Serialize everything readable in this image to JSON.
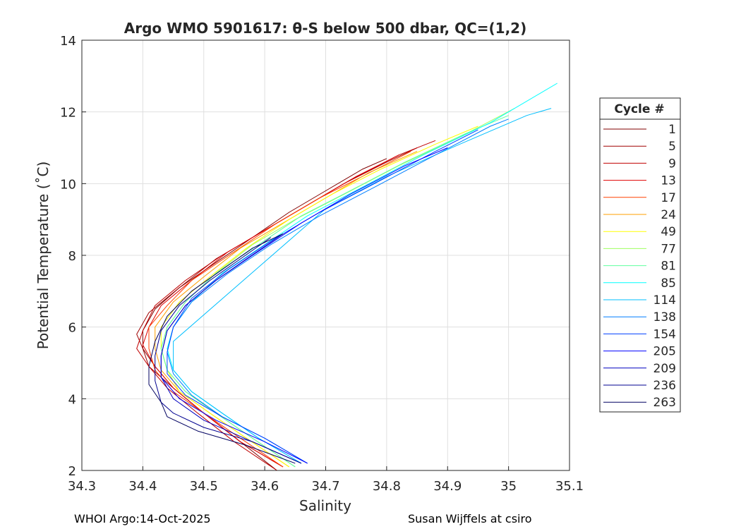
{
  "chart_data": {
    "type": "line",
    "title": "Argo WMO 5901617: θ-S below 500 dbar,  QC=(1,2)",
    "xlabel": "Salinity",
    "ylabel": "Potential Temperature (˚C)",
    "xlim": [
      34.3,
      35.1
    ],
    "ylim": [
      2,
      14
    ],
    "xticks": [
      "34.3",
      "34.4",
      "34.5",
      "34.6",
      "34.7",
      "34.8",
      "34.9",
      "35",
      "35.1"
    ],
    "yticks": [
      "2",
      "4",
      "6",
      "8",
      "10",
      "12",
      "14"
    ],
    "grid": true,
    "legend": {
      "title": "Cycle #",
      "placement": "right-outside"
    },
    "series": [
      {
        "name": "1",
        "color": "#800000",
        "points": [
          [
            34.62,
            2.0
          ],
          [
            34.56,
            2.8
          ],
          [
            34.5,
            3.6
          ],
          [
            34.45,
            4.3
          ],
          [
            34.42,
            4.9
          ],
          [
            34.4,
            5.4
          ],
          [
            34.4,
            5.9
          ],
          [
            34.42,
            6.5
          ],
          [
            34.46,
            7.1
          ],
          [
            34.52,
            7.8
          ],
          [
            34.58,
            8.5
          ],
          [
            34.64,
            9.2
          ],
          [
            34.7,
            9.8
          ],
          [
            34.76,
            10.4
          ],
          [
            34.8,
            10.7
          ]
        ]
      },
      {
        "name": "5",
        "color": "#a00000",
        "points": [
          [
            34.63,
            2.1
          ],
          [
            34.56,
            2.8
          ],
          [
            34.5,
            3.6
          ],
          [
            34.45,
            4.3
          ],
          [
            34.41,
            4.9
          ],
          [
            34.4,
            5.4
          ],
          [
            34.39,
            5.8
          ],
          [
            34.41,
            6.4
          ],
          [
            34.46,
            7.1
          ],
          [
            34.52,
            7.9
          ],
          [
            34.59,
            8.6
          ],
          [
            34.66,
            9.3
          ],
          [
            34.73,
            10.0
          ],
          [
            34.8,
            10.6
          ],
          [
            34.85,
            11.0
          ]
        ]
      },
      {
        "name": "9",
        "color": "#c00000",
        "points": [
          [
            34.62,
            2.0
          ],
          [
            34.55,
            2.8
          ],
          [
            34.49,
            3.6
          ],
          [
            34.44,
            4.3
          ],
          [
            34.41,
            4.9
          ],
          [
            34.39,
            5.4
          ],
          [
            34.4,
            5.9
          ],
          [
            34.42,
            6.6
          ],
          [
            34.47,
            7.3
          ],
          [
            34.53,
            8.0
          ],
          [
            34.6,
            8.7
          ],
          [
            34.67,
            9.4
          ],
          [
            34.74,
            10.1
          ],
          [
            34.82,
            10.8
          ],
          [
            34.88,
            11.2
          ]
        ]
      },
      {
        "name": "13",
        "color": "#e00000",
        "points": [
          [
            34.63,
            2.1
          ],
          [
            34.56,
            2.8
          ],
          [
            34.5,
            3.6
          ],
          [
            34.45,
            4.3
          ],
          [
            34.42,
            4.9
          ],
          [
            34.4,
            5.5
          ],
          [
            34.41,
            6.0
          ],
          [
            34.43,
            6.6
          ],
          [
            34.48,
            7.3
          ],
          [
            34.54,
            8.1
          ],
          [
            34.61,
            8.8
          ],
          [
            34.68,
            9.5
          ],
          [
            34.75,
            10.2
          ],
          [
            34.82,
            10.8
          ]
        ]
      },
      {
        "name": "17",
        "color": "#ff4000",
        "points": [
          [
            34.63,
            2.1
          ],
          [
            34.56,
            2.9
          ],
          [
            34.5,
            3.6
          ],
          [
            34.45,
            4.2
          ],
          [
            34.42,
            4.8
          ],
          [
            34.41,
            5.4
          ],
          [
            34.41,
            6.0
          ],
          [
            34.44,
            6.6
          ],
          [
            34.48,
            7.3
          ],
          [
            34.55,
            8.1
          ],
          [
            34.62,
            8.9
          ],
          [
            34.69,
            9.6
          ],
          [
            34.76,
            10.2
          ],
          [
            34.84,
            10.9
          ]
        ]
      },
      {
        "name": "24",
        "color": "#ff9f00",
        "points": [
          [
            34.64,
            2.1
          ],
          [
            34.57,
            2.9
          ],
          [
            34.51,
            3.6
          ],
          [
            34.46,
            4.2
          ],
          [
            34.43,
            4.8
          ],
          [
            34.42,
            5.4
          ],
          [
            34.42,
            6.0
          ],
          [
            34.45,
            6.7
          ],
          [
            34.5,
            7.4
          ],
          [
            34.56,
            8.2
          ],
          [
            34.63,
            8.9
          ],
          [
            34.7,
            9.6
          ],
          [
            34.77,
            10.3
          ],
          [
            34.85,
            10.9
          ]
        ]
      },
      {
        "name": "49",
        "color": "#ffff00",
        "points": [
          [
            34.64,
            2.1
          ],
          [
            34.57,
            2.9
          ],
          [
            34.51,
            3.6
          ],
          [
            34.46,
            4.2
          ],
          [
            34.44,
            4.8
          ],
          [
            34.43,
            5.4
          ],
          [
            34.43,
            6.0
          ],
          [
            34.46,
            6.7
          ],
          [
            34.51,
            7.4
          ],
          [
            34.57,
            8.2
          ],
          [
            34.64,
            9.0
          ],
          [
            34.71,
            9.7
          ],
          [
            34.79,
            10.4
          ],
          [
            34.88,
            11.1
          ],
          [
            34.95,
            11.6
          ]
        ]
      },
      {
        "name": "77",
        "color": "#9fff60",
        "points": [
          [
            34.65,
            2.1
          ],
          [
            34.58,
            2.9
          ],
          [
            34.52,
            3.6
          ],
          [
            34.47,
            4.2
          ],
          [
            34.44,
            4.8
          ],
          [
            34.43,
            5.4
          ],
          [
            34.44,
            6.0
          ],
          [
            34.47,
            6.7
          ],
          [
            34.52,
            7.5
          ],
          [
            34.58,
            8.3
          ],
          [
            34.65,
            9.0
          ],
          [
            34.73,
            9.7
          ],
          [
            34.82,
            10.5
          ],
          [
            34.92,
            11.3
          ],
          [
            35.01,
            12.1
          ]
        ]
      },
      {
        "name": "81",
        "color": "#60ff9f",
        "points": [
          [
            34.65,
            2.1
          ],
          [
            34.58,
            2.9
          ],
          [
            34.52,
            3.6
          ],
          [
            34.47,
            4.2
          ],
          [
            34.44,
            4.8
          ],
          [
            34.43,
            5.4
          ],
          [
            34.44,
            6.0
          ],
          [
            34.47,
            6.7
          ],
          [
            34.52,
            7.5
          ],
          [
            34.59,
            8.3
          ],
          [
            34.66,
            9.1
          ],
          [
            34.74,
            9.8
          ],
          [
            34.83,
            10.6
          ],
          [
            34.93,
            11.4
          ],
          [
            35.0,
            11.9
          ]
        ]
      },
      {
        "name": "85",
        "color": "#00ffff",
        "points": [
          [
            34.66,
            2.2
          ],
          [
            34.59,
            2.9
          ],
          [
            34.53,
            3.6
          ],
          [
            34.48,
            4.2
          ],
          [
            34.45,
            4.8
          ],
          [
            34.44,
            5.4
          ],
          [
            34.45,
            6.0
          ],
          [
            34.48,
            6.7
          ],
          [
            34.53,
            7.5
          ],
          [
            34.6,
            8.3
          ],
          [
            34.67,
            9.1
          ],
          [
            34.76,
            9.9
          ],
          [
            34.86,
            10.8
          ],
          [
            34.97,
            11.7
          ],
          [
            35.08,
            12.8
          ]
        ]
      },
      {
        "name": "114",
        "color": "#00bfff",
        "points": [
          [
            34.66,
            2.2
          ],
          [
            34.59,
            2.9
          ],
          [
            34.53,
            3.6
          ],
          [
            34.48,
            4.2
          ],
          [
            34.45,
            4.8
          ],
          [
            34.45,
            5.6
          ],
          [
            34.7,
            9.3
          ],
          [
            34.8,
            10.2
          ],
          [
            34.92,
            11.1
          ],
          [
            35.03,
            11.9
          ],
          [
            35.07,
            12.1
          ]
        ]
      },
      {
        "name": "138",
        "color": "#007fff",
        "points": [
          [
            34.67,
            2.2
          ],
          [
            34.6,
            2.9
          ],
          [
            34.53,
            3.5
          ],
          [
            34.48,
            4.1
          ],
          [
            34.45,
            4.7
          ],
          [
            34.44,
            5.3
          ],
          [
            34.45,
            6.0
          ],
          [
            34.48,
            6.7
          ],
          [
            34.54,
            7.5
          ],
          [
            34.61,
            8.3
          ],
          [
            34.69,
            9.1
          ],
          [
            34.78,
            9.9
          ],
          [
            34.88,
            10.8
          ],
          [
            34.97,
            11.6
          ],
          [
            35.0,
            11.8
          ]
        ]
      },
      {
        "name": "154",
        "color": "#003fff",
        "points": [
          [
            34.67,
            2.2
          ],
          [
            34.6,
            2.9
          ],
          [
            34.53,
            3.5
          ],
          [
            34.47,
            4.1
          ],
          [
            34.44,
            4.7
          ],
          [
            34.44,
            5.3
          ],
          [
            34.45,
            6.0
          ],
          [
            34.48,
            6.8
          ],
          [
            34.54,
            7.6
          ],
          [
            34.61,
            8.4
          ],
          [
            34.69,
            9.2
          ],
          [
            34.78,
            10.0
          ],
          [
            34.88,
            10.9
          ],
          [
            34.95,
            11.5
          ]
        ]
      },
      {
        "name": "205",
        "color": "#0000ff",
        "points": [
          [
            34.67,
            2.2
          ],
          [
            34.6,
            2.8
          ],
          [
            34.52,
            3.4
          ],
          [
            34.46,
            4.0
          ],
          [
            34.43,
            4.6
          ],
          [
            34.43,
            5.2
          ],
          [
            34.44,
            5.9
          ],
          [
            34.47,
            6.6
          ],
          [
            34.52,
            7.3
          ],
          [
            34.58,
            8.0
          ],
          [
            34.66,
            8.9
          ],
          [
            34.74,
            9.7
          ],
          [
            34.83,
            10.5
          ],
          [
            34.9,
            11.0
          ]
        ]
      },
      {
        "name": "209",
        "color": "#0000c0",
        "points": [
          [
            34.66,
            2.2
          ],
          [
            34.58,
            2.8
          ],
          [
            34.5,
            3.4
          ],
          [
            34.45,
            4.0
          ],
          [
            34.43,
            4.6
          ],
          [
            34.43,
            5.2
          ],
          [
            34.44,
            5.9
          ],
          [
            34.47,
            6.6
          ],
          [
            34.52,
            7.3
          ],
          [
            34.57,
            7.9
          ],
          [
            34.63,
            8.6
          ]
        ]
      },
      {
        "name": "236",
        "color": "#000090",
        "points": [
          [
            34.66,
            2.2
          ],
          [
            34.58,
            2.8
          ],
          [
            34.5,
            3.2
          ],
          [
            34.45,
            3.6
          ],
          [
            34.43,
            3.9
          ],
          [
            34.42,
            4.5
          ],
          [
            34.42,
            5.2
          ],
          [
            34.43,
            5.9
          ],
          [
            34.46,
            6.6
          ],
          [
            34.51,
            7.3
          ],
          [
            34.56,
            7.9
          ],
          [
            34.61,
            8.5
          ]
        ]
      },
      {
        "name": "263",
        "color": "#000060",
        "points": [
          [
            34.65,
            2.2
          ],
          [
            34.57,
            2.7
          ],
          [
            34.49,
            3.1
          ],
          [
            34.44,
            3.5
          ],
          [
            34.43,
            3.9
          ],
          [
            34.41,
            4.4
          ],
          [
            34.41,
            4.9
          ],
          [
            34.42,
            5.6
          ],
          [
            34.44,
            6.3
          ],
          [
            34.48,
            7.0
          ],
          [
            34.53,
            7.6
          ],
          [
            34.58,
            8.2
          ],
          [
            34.63,
            8.6
          ]
        ]
      }
    ]
  },
  "footer": {
    "left": "WHOI Argo:14-Oct-2025",
    "right": "Susan Wijffels at csiro"
  }
}
